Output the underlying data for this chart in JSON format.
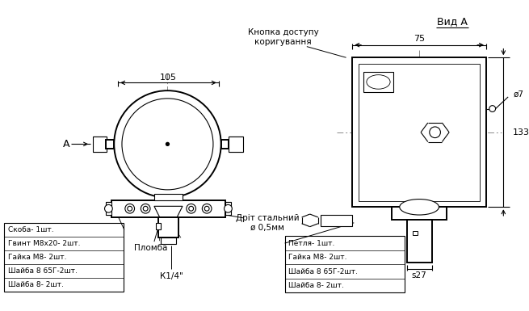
{
  "bg_color": "#ffffff",
  "line_color": "#000000",
  "title_vid": "Вид А",
  "dim_105": "105",
  "dim_75": "75",
  "dim_7": "ø7",
  "dim_133": "133",
  "dim_s27": "s27",
  "label_button": "Кнопка доступу\nкоригування",
  "label_wire": "Дріт стальний\nø 0,5мм",
  "label_seal": "Пломба",
  "label_k14": "К1/4\"",
  "label_A": "А",
  "parts_left": [
    "Скоба- 1шт.",
    "Гвинт М8х20- 2шт.",
    "Гайка М8- 2шт.",
    "Шайба 8 65Г-2шт.",
    "Шайба 8- 2шт."
  ],
  "parts_right": [
    "Петля- 1шт.",
    "Гайка М8- 2шт.",
    "Шайба 8 65Г-2шт.",
    "Шайба 8- 2шт."
  ]
}
